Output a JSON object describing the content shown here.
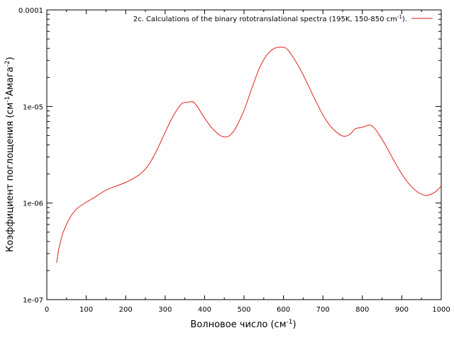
{
  "chart_data": {
    "type": "line",
    "xlabel": "Волновое число (см",
    "xlabel_sup": "-1",
    "xlabel_end": ")",
    "ylabel": "Коэффициент поглощения (см",
    "ylabel_sup1": "-1",
    "ylabel_mid": "Амага",
    "ylabel_sup2": "-2",
    "ylabel_end": ")",
    "xlim": [
      0,
      1000
    ],
    "ylim": [
      1e-07,
      0.0001
    ],
    "yscale": "log",
    "x_ticks": [
      "0",
      "100",
      "200",
      "300",
      "400",
      "500",
      "600",
      "700",
      "800",
      "900",
      "1000"
    ],
    "y_ticks": [
      "1e-07",
      "1e-06",
      "1e-05",
      "0.0001"
    ],
    "legend_position": "top-right",
    "series": [
      {
        "name": "2c. Calculations of the binary rototranslational spectra  (195K, 150-850 cm",
        "name_sup": "-1",
        "name_end": ").",
        "color": "#e0201c",
        "x": [
          25,
          30,
          35,
          40,
          50,
          60,
          70,
          80,
          100,
          120,
          150,
          180,
          200,
          220,
          240,
          260,
          280,
          300,
          320,
          340,
          350,
          360,
          370,
          380,
          400,
          420,
          440,
          450,
          460,
          470,
          480,
          500,
          520,
          540,
          560,
          580,
          600,
          610,
          620,
          640,
          660,
          680,
          700,
          720,
          740,
          750,
          760,
          770,
          780,
          790,
          800,
          810,
          820,
          830,
          840,
          860,
          880,
          900,
          920,
          940,
          960,
          970,
          980,
          990,
          1000
        ],
        "y": [
          2.4e-07,
          3.3e-07,
          4e-07,
          4.8e-07,
          6e-07,
          7.2e-07,
          8.2e-07,
          9e-07,
          1.02e-06,
          1.14e-06,
          1.36e-06,
          1.52e-06,
          1.64e-06,
          1.8e-06,
          2.05e-06,
          2.55e-06,
          3.6e-06,
          5.4e-06,
          7.9e-06,
          1.05e-05,
          1.1e-05,
          1.11e-05,
          1.12e-05,
          1.02e-05,
          7.6e-06,
          5.9e-06,
          5e-06,
          4.85e-06,
          4.9e-06,
          5.3e-06,
          6.1e-06,
          9.1e-06,
          1.55e-05,
          2.55e-05,
          3.5e-05,
          4.05e-05,
          4.1e-05,
          3.9e-05,
          3.45e-05,
          2.55e-05,
          1.75e-05,
          1.18e-05,
          8.2e-06,
          6.2e-06,
          5.2e-06,
          4.95e-06,
          4.95e-06,
          5.2e-06,
          5.8e-06,
          6e-06,
          6.1e-06,
          6.3e-06,
          6.4e-06,
          6e-06,
          5.3e-06,
          3.9e-06,
          2.75e-06,
          2e-06,
          1.55e-06,
          1.3e-06,
          1.2e-06,
          1.22e-06,
          1.27e-06,
          1.36e-06,
          1.5e-06
        ]
      }
    ]
  }
}
